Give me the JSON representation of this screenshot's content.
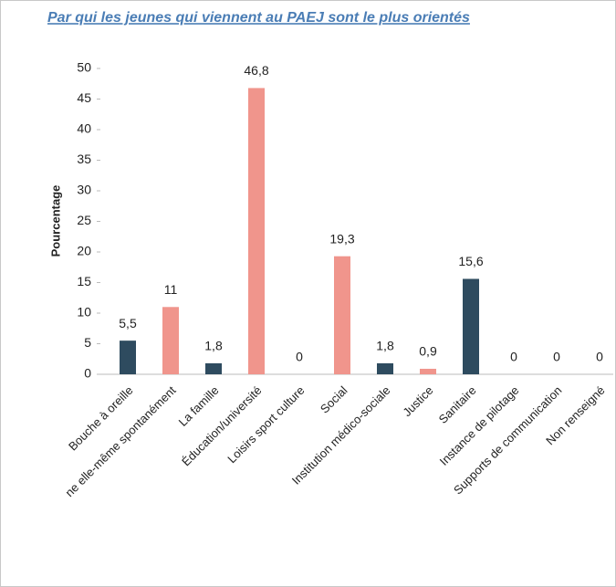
{
  "chart_data": {
    "type": "bar",
    "title": "Par qui les jeunes qui viennent au PAEJ sont le plus orientés",
    "y_label": "Pourcentage",
    "categories": [
      "Bouche à oreille",
      "ne elle-même spontanément",
      "La famille",
      "Éducation/université",
      "Loisirs sport culture",
      "Social",
      "Institution médico-sociale",
      "Justice",
      "Sanitaire",
      "Instance de pilotage",
      "Supports de communication",
      "Non renseigné"
    ],
    "values": [
      5.5,
      11,
      1.8,
      46.8,
      0,
      19.3,
      1.8,
      0.9,
      15.6,
      0,
      0,
      0
    ],
    "value_labels": [
      "5,5",
      "11",
      "1,8",
      "46,8",
      "0",
      "19,3",
      "1,8",
      "0,9",
      "15,6",
      "0",
      "0",
      "0"
    ],
    "colors": [
      "#2e4b5f",
      "#f0958c",
      "#2e4b5f",
      "#f0958c",
      "#2e4b5f",
      "#f0958c",
      "#2e4b5f",
      "#f0958c",
      "#2e4b5f",
      "#2e4b5f",
      "#2e4b5f",
      "#2e4b5f"
    ],
    "ylim": [
      0,
      50
    ],
    "yticks": [
      0,
      5,
      10,
      15,
      20,
      25,
      30,
      35,
      40,
      45,
      50
    ],
    "grid": false
  }
}
